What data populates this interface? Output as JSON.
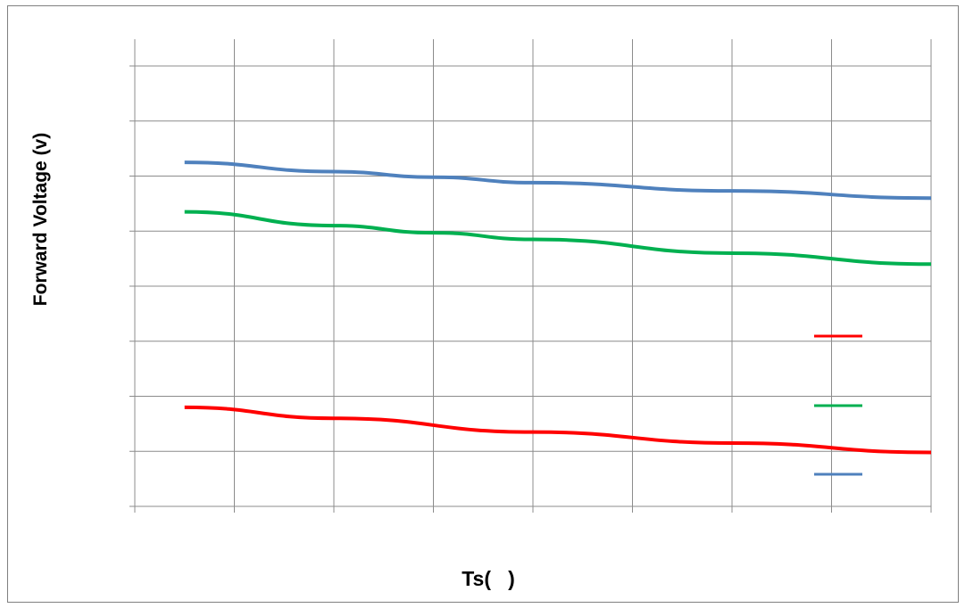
{
  "chart_data": {
    "type": "line",
    "title": "",
    "xlabel": "Ts(   )",
    "ylabel": "Forward Voltage (v)",
    "xlim": [
      0,
      8
    ],
    "ylim": [
      0,
      8
    ],
    "grid": true,
    "legend_position": "right",
    "series": [
      {
        "color": "#ff0000",
        "x": [
          0.5,
          2,
          4,
          6,
          8
        ],
        "y": [
          1.8,
          1.6,
          1.35,
          1.15,
          0.98
        ]
      },
      {
        "color": "#00b050",
        "x": [
          0.5,
          2,
          3,
          4,
          6,
          8
        ],
        "y": [
          5.35,
          5.1,
          4.97,
          4.85,
          4.6,
          4.4
        ]
      },
      {
        "color": "#4f81bd",
        "x": [
          0.5,
          2,
          3,
          4,
          6,
          8
        ],
        "y": [
          6.25,
          6.08,
          5.98,
          5.88,
          5.73,
          5.6
        ]
      }
    ]
  }
}
